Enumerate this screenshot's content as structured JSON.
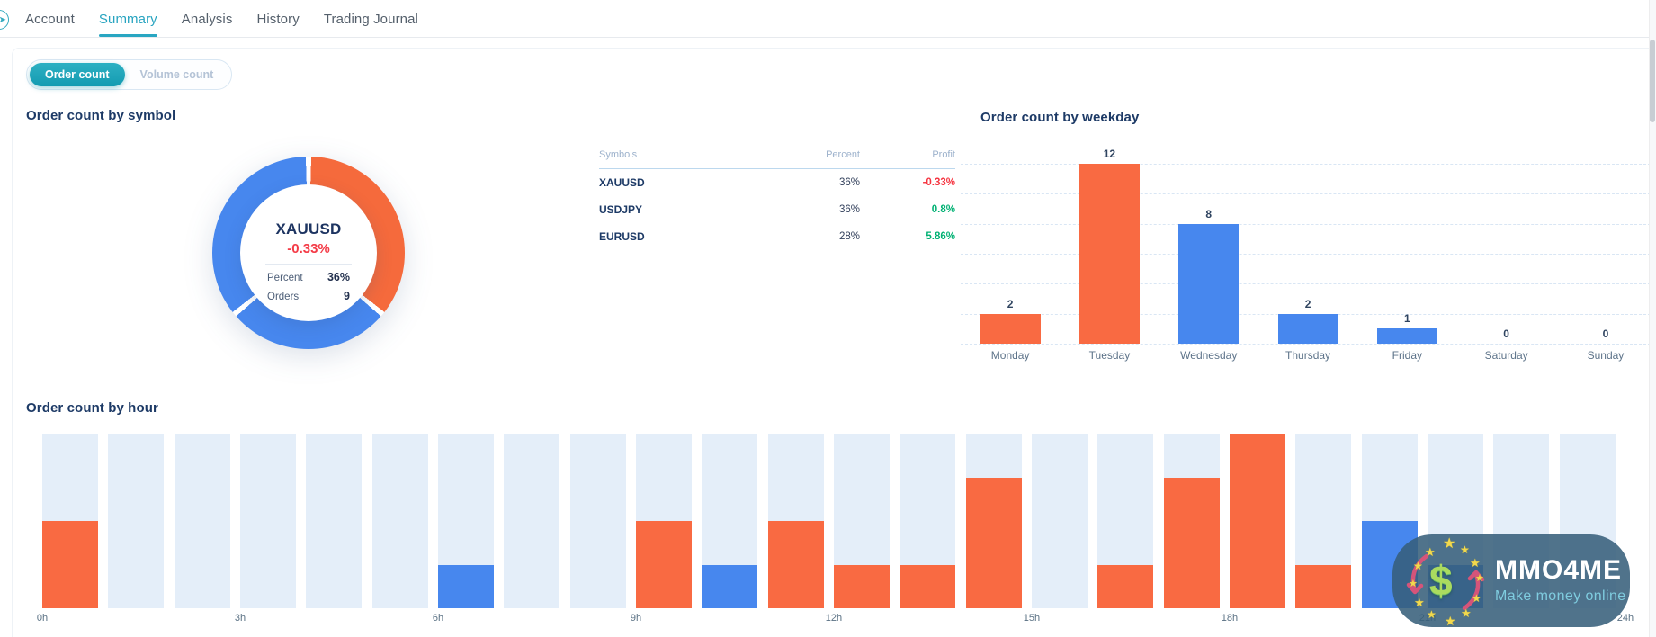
{
  "nav": {
    "items": [
      {
        "label": "Account",
        "active": false
      },
      {
        "label": "Summary",
        "active": true
      },
      {
        "label": "Analysis",
        "active": false
      },
      {
        "label": "History",
        "active": false
      },
      {
        "label": "Trading Journal",
        "active": false
      }
    ]
  },
  "toggle": {
    "options": [
      {
        "label": "Order count",
        "active": true
      },
      {
        "label": "Volume count",
        "active": false
      }
    ]
  },
  "symbol_section": {
    "title": "Order count by symbol",
    "donut_center": {
      "symbol": "XAUUSD",
      "profit": "-0.33%",
      "percent_label": "Percent",
      "percent_value": "36%",
      "orders_label": "Orders",
      "orders_value": "9"
    },
    "table": {
      "headers": [
        "Symbols",
        "Percent",
        "Profit"
      ],
      "rows": [
        {
          "symbol": "XAUUSD",
          "percent": "36%",
          "profit": "-0.33%",
          "profit_sign": "neg"
        },
        {
          "symbol": "USDJPY",
          "percent": "36%",
          "profit": "0.8%",
          "profit_sign": "pos"
        },
        {
          "symbol": "EURUSD",
          "percent": "28%",
          "profit": "5.86%",
          "profit_sign": "pos"
        }
      ]
    }
  },
  "weekday_section": {
    "title": "Order count by weekday"
  },
  "hour_section": {
    "title": "Order count by hour"
  },
  "watermark": {
    "title": "MMO4ME",
    "subtitle": "Make money online",
    "logo_icon": "dollar-stars-exchange-icon"
  },
  "colors": {
    "accent_teal": "#1fa2b8",
    "orange": "#f96a42",
    "blue": "#4787ee",
    "negative_red": "#f5333f",
    "positive_green": "#00b173",
    "navy_text": "#1d3a66",
    "hour_column_bg": "#e4eef9",
    "gridline": "#d9e6f4"
  },
  "chart_data": [
    {
      "type": "pie",
      "title": "Order count by symbol",
      "donut": true,
      "center_label": {
        "symbol": "XAUUSD",
        "profit": "-0.33%",
        "percent": "36%",
        "orders": 9
      },
      "slices": [
        {
          "name": "XAUUSD",
          "percent": 36,
          "orders": 9,
          "profit": "-0.33%",
          "color": "#f56a3c"
        },
        {
          "name": "EURUSD",
          "percent": 28,
          "profit": "5.86%",
          "color": "#4787ee"
        },
        {
          "name": "USDJPY",
          "percent": 36,
          "profit": "0.8%",
          "color": "#4787ee"
        }
      ],
      "slice_order": "clockwise from 12 o'clock, thin white separators between slices"
    },
    {
      "type": "bar",
      "title": "Order count by weekday",
      "categories": [
        "Monday",
        "Tuesday",
        "Wednesday",
        "Thursday",
        "Friday",
        "Saturday",
        "Sunday"
      ],
      "values": [
        2,
        12,
        8,
        2,
        1,
        0,
        0
      ],
      "bar_colors": [
        "#f96a42",
        "#f96a42",
        "#4787ee",
        "#4787ee",
        "#4787ee",
        null,
        null
      ],
      "value_labels": [
        "2",
        "12",
        "8",
        "2",
        "1",
        "0",
        "0"
      ],
      "ylim": [
        0,
        12
      ],
      "grid": "horizontal dashed every 2 units",
      "legend": "none"
    },
    {
      "type": "bar",
      "title": "Order count by hour",
      "categories": [
        "0h",
        "1h",
        "2h",
        "3h",
        "4h",
        "5h",
        "6h",
        "7h",
        "8h",
        "9h",
        "10h",
        "11h",
        "12h",
        "13h",
        "14h",
        "15h",
        "16h",
        "17h",
        "18h",
        "19h",
        "20h",
        "21h",
        "22h",
        "23h"
      ],
      "values": [
        2,
        0,
        0,
        0,
        0,
        0,
        1,
        0,
        0,
        2,
        1,
        2,
        1,
        1,
        3,
        0,
        1,
        3,
        4,
        1,
        2,
        1,
        0,
        0
      ],
      "bar_colors": [
        "#f96a42",
        null,
        null,
        null,
        null,
        null,
        "#4787ee",
        null,
        null,
        "#f96a42",
        "#4787ee",
        "#f96a42",
        "#f96a42",
        "#f96a42",
        "#f96a42",
        null,
        "#f96a42",
        "#f96a42",
        "#f96a42",
        "#f96a42",
        "#4787ee",
        "#4787ee",
        null,
        null
      ],
      "x_tick_labels": [
        "0h",
        "3h",
        "6h",
        "9h",
        "12h",
        "15h",
        "18h",
        "21h",
        "24h"
      ],
      "ylim": [
        0,
        4
      ],
      "grid": "none",
      "background_columns": true
    }
  ]
}
